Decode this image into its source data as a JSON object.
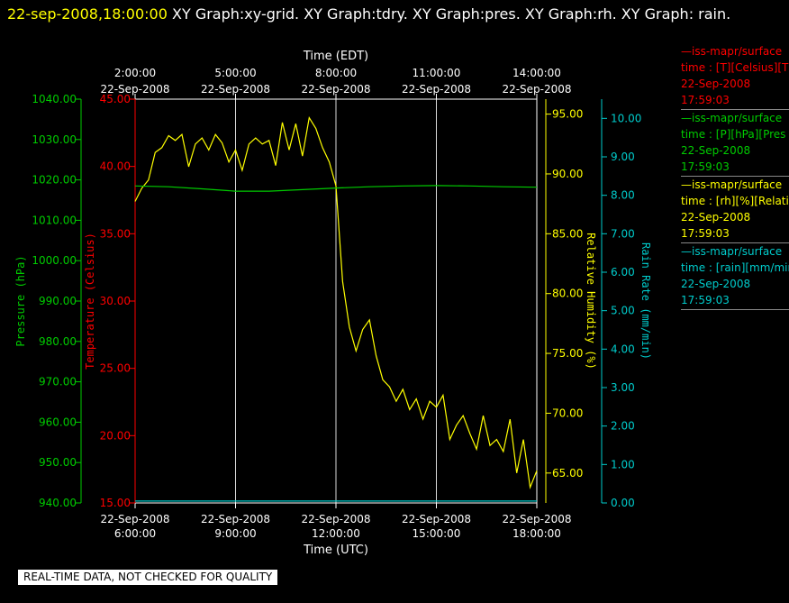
{
  "header": {
    "timestamp": "22-sep-2008,18:00:00",
    "graphs": " XY Graph:xy-grid.  XY Graph:tdry.  XY Graph:pres.  XY Graph:rh.  XY Graph: rain."
  },
  "footer": {
    "notice": "REAL-TIME DATA, NOT CHECKED FOR QUALITY"
  },
  "colors": {
    "temperature": "#ff0000",
    "pressure": "#00cc00",
    "humidity": "#ffff00",
    "rain": "#00cccc",
    "grid": "#ffffff"
  },
  "legend": [
    {
      "line": "—iss-mapr/surface",
      "unit": "time : [T][Celsius][T",
      "date": "22-Sep-2008",
      "time": "17:59:03",
      "color": "#ff0000"
    },
    {
      "line": "—iss-mapr/surface",
      "unit": "time : [P][hPa][Pres",
      "date": "22-Sep-2008",
      "time": "17:59:03",
      "color": "#00cc00"
    },
    {
      "line": "—iss-mapr/surface",
      "unit": "time : [rh][%][Relati",
      "date": "22-Sep-2008",
      "time": "17:59:03",
      "color": "#ffff00"
    },
    {
      "line": "—iss-mapr/surface",
      "unit": "time : [rain][mm/min",
      "date": "22-Sep-2008",
      "time": "17:59:03",
      "color": "#00cccc"
    }
  ],
  "chart_data": {
    "type": "line",
    "grid": true,
    "x_bottom": {
      "label": "Time (UTC)",
      "range_hours": [
        6,
        18
      ],
      "ticks": [
        {
          "date": "22-Sep-2008",
          "time": "6:00:00"
        },
        {
          "date": "22-Sep-2008",
          "time": "9:00:00"
        },
        {
          "date": "22-Sep-2008",
          "time": "12:00:00"
        },
        {
          "date": "22-Sep-2008",
          "time": "15:00:00"
        },
        {
          "date": "22-Sep-2008",
          "time": "18:00:00"
        }
      ]
    },
    "x_top": {
      "label": "Time (EDT)",
      "ticks": [
        {
          "time": "2:00:00",
          "date": "22-Sep-2008"
        },
        {
          "time": "5:00:00",
          "date": "22-Sep-2008"
        },
        {
          "time": "8:00:00",
          "date": "22-Sep-2008"
        },
        {
          "time": "11:00:00",
          "date": "22-Sep-2008"
        },
        {
          "time": "14:00:00",
          "date": "22-Sep-2008"
        }
      ]
    },
    "axes": {
      "pressure": {
        "label": "Pressure (hPa)",
        "range": [
          940,
          1040
        ],
        "ticks": [
          "940.00",
          "950.00",
          "960.00",
          "970.00",
          "980.00",
          "990.00",
          "1000.00",
          "1010.00",
          "1020.00",
          "1030.00",
          "1040.00"
        ]
      },
      "temperature": {
        "label": "Temperature (Celsius)",
        "range": [
          15,
          45
        ],
        "ticks": [
          "15.00",
          "20.00",
          "25.00",
          "30.00",
          "35.00",
          "40.00",
          "45.00"
        ]
      },
      "humidity": {
        "label": "Relative Humidity (%)",
        "range": [
          62.5,
          96.25
        ],
        "ticks": [
          "65.00",
          "70.00",
          "75.00",
          "80.00",
          "85.00",
          "90.00",
          "95.00"
        ]
      },
      "rain": {
        "label": "Rain Rate (mm/min)",
        "range": [
          0,
          10.5
        ],
        "ticks": [
          "0.00",
          "1.00",
          "2.00",
          "3.00",
          "4.00",
          "5.00",
          "6.00",
          "7.00",
          "8.00",
          "9.00",
          "10.00"
        ]
      }
    },
    "series": [
      {
        "name": "rh",
        "axis": "humidity",
        "x": [
          6.0,
          6.2,
          6.4,
          6.6,
          6.8,
          7.0,
          7.2,
          7.4,
          7.6,
          7.8,
          8.0,
          8.2,
          8.4,
          8.6,
          8.8,
          9.0,
          9.2,
          9.4,
          9.6,
          9.8,
          10.0,
          10.2,
          10.4,
          10.6,
          10.8,
          11.0,
          11.2,
          11.4,
          11.6,
          11.8,
          12.0,
          12.2,
          12.4,
          12.6,
          12.8,
          13.0,
          13.2,
          13.4,
          13.6,
          13.8,
          14.0,
          14.2,
          14.4,
          14.6,
          14.8,
          15.0,
          15.2,
          15.4,
          15.6,
          15.8,
          16.0,
          16.2,
          16.4,
          16.6,
          16.8,
          17.0,
          17.2,
          17.4,
          17.6,
          17.8,
          18.0
        ],
        "y": [
          87.7,
          88.8,
          89.5,
          91.8,
          92.2,
          93.2,
          92.8,
          93.3,
          90.6,
          92.5,
          93.0,
          92.0,
          93.3,
          92.6,
          91.0,
          92.0,
          90.3,
          92.5,
          93.0,
          92.5,
          92.8,
          90.7,
          94.3,
          92.0,
          94.2,
          91.5,
          94.7,
          93.8,
          92.2,
          91.0,
          89.0,
          81.0,
          77.2,
          75.2,
          77.0,
          77.8,
          74.8,
          72.8,
          72.2,
          71.0,
          72.0,
          70.3,
          71.2,
          69.5,
          71.0,
          70.5,
          71.5,
          67.8,
          69.0,
          69.8,
          68.3,
          67.0,
          69.8,
          67.3,
          67.8,
          66.8,
          69.5,
          65.0,
          67.8,
          63.8,
          65.2
        ]
      },
      {
        "name": "pres",
        "axis": "pressure",
        "x": [
          6.0,
          7.0,
          8.0,
          9.0,
          10.0,
          11.0,
          12.0,
          13.0,
          14.0,
          15.0,
          16.0,
          17.0,
          18.0
        ],
        "y": [
          1018.5,
          1018.3,
          1017.8,
          1017.2,
          1017.2,
          1017.6,
          1018.0,
          1018.3,
          1018.5,
          1018.6,
          1018.5,
          1018.3,
          1018.2
        ]
      },
      {
        "name": "rain",
        "axis": "rain",
        "x": [
          6.0,
          18.0
        ],
        "y": [
          0.05,
          0.05
        ]
      }
    ]
  }
}
